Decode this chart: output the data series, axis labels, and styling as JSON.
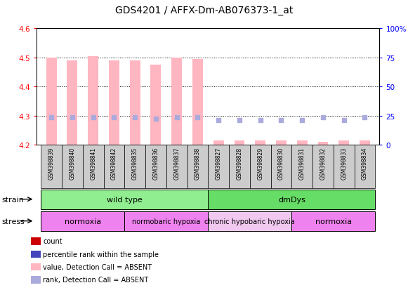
{
  "title": "GDS4201 / AFFX-Dm-AB076373-1_at",
  "samples": [
    "GSM398839",
    "GSM398840",
    "GSM398841",
    "GSM398842",
    "GSM398835",
    "GSM398836",
    "GSM398837",
    "GSM398838",
    "GSM398827",
    "GSM398828",
    "GSM398829",
    "GSM398830",
    "GSM398831",
    "GSM398832",
    "GSM398833",
    "GSM398834"
  ],
  "value_absent": [
    4.5,
    4.49,
    4.505,
    4.49,
    4.49,
    4.475,
    4.5,
    4.495,
    4.215,
    4.215,
    4.215,
    4.215,
    4.215,
    4.21,
    4.215,
    4.215
  ],
  "rank_absent": [
    4.293,
    4.293,
    4.293,
    4.293,
    4.293,
    4.29,
    4.293,
    4.293,
    4.285,
    4.285,
    4.285,
    4.285,
    4.285,
    4.293,
    4.285,
    4.293
  ],
  "ylim_left": [
    4.2,
    4.6
  ],
  "ylim_right": [
    0,
    100
  ],
  "yticks_left": [
    4.2,
    4.3,
    4.4,
    4.5,
    4.6
  ],
  "yticks_right": [
    0,
    25,
    50,
    75,
    100
  ],
  "strain_groups": [
    {
      "label": "wild type",
      "start": 0,
      "end": 8,
      "color": "#90EE90"
    },
    {
      "label": "dmDys",
      "start": 8,
      "end": 16,
      "color": "#66DD66"
    }
  ],
  "stress_groups": [
    {
      "label": "normoxia",
      "start": 0,
      "end": 4,
      "color": "#EE82EE"
    },
    {
      "label": "normobaric hypoxia",
      "start": 4,
      "end": 8,
      "color": "#EE82EE"
    },
    {
      "label": "chronic hypobaric hypoxia",
      "start": 8,
      "end": 12,
      "color": "#f0c8f0"
    },
    {
      "label": "normoxia",
      "start": 12,
      "end": 16,
      "color": "#EE82EE"
    }
  ],
  "bar_color_absent": "#FFB6C1",
  "rank_color_absent": "#aaaadd",
  "title_fontsize": 10,
  "legend_items": [
    {
      "color": "#cc0000",
      "label": "count"
    },
    {
      "color": "#4444bb",
      "label": "percentile rank within the sample"
    },
    {
      "color": "#FFB6C1",
      "label": "value, Detection Call = ABSENT"
    },
    {
      "color": "#aaaadd",
      "label": "rank, Detection Call = ABSENT"
    }
  ],
  "sample_box_color": "#cccccc",
  "n_samples": 16
}
